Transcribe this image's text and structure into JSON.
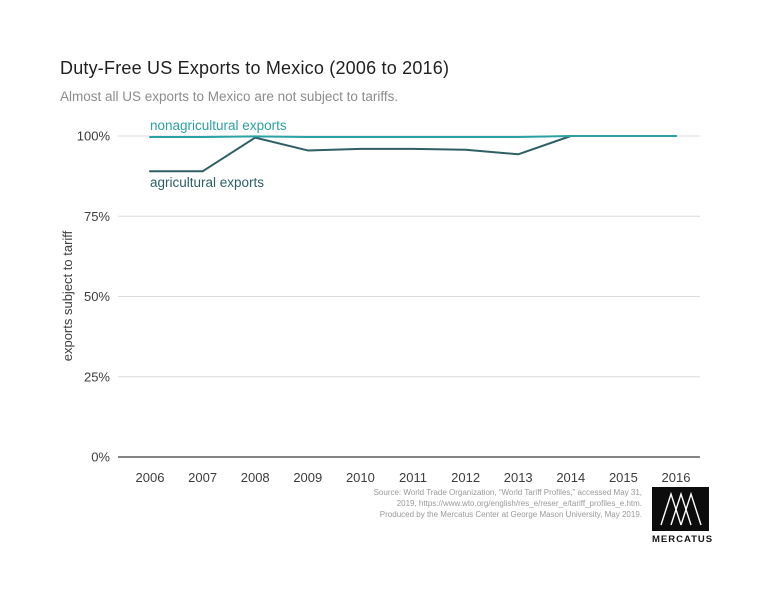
{
  "header": {
    "title": "Duty-Free US Exports to Mexico (2006 to 2016)",
    "subtitle": "Almost all US exports to Mexico are not subject to tariffs."
  },
  "chart_data": {
    "type": "line",
    "x": [
      2006,
      2007,
      2008,
      2009,
      2010,
      2011,
      2012,
      2013,
      2014,
      2015,
      2016
    ],
    "series": [
      {
        "name": "nonagricultural exports",
        "color": "#2ba1a5",
        "values": [
          99.7,
          99.7,
          99.9,
          99.7,
          99.7,
          99.7,
          99.7,
          99.7,
          100,
          100,
          100
        ]
      },
      {
        "name": "agricultural exports",
        "color": "#2e5f65",
        "values": [
          89,
          89,
          99.5,
          95.5,
          96,
          96,
          95.7,
          94.3,
          100,
          100,
          100
        ]
      }
    ],
    "title": "Duty-Free US Exports to Mexico (2006 to 2016)",
    "xlabel": "",
    "ylabel": "exports subject to tariff",
    "ylim": [
      0,
      100
    ],
    "yticks": [
      0,
      25,
      50,
      75,
      100
    ],
    "ytick_labels": [
      "0%",
      "25%",
      "50%",
      "75%",
      "100%"
    ],
    "grid": true,
    "legend": "inline-annotations",
    "colors": {
      "grid": "#dcdcdc",
      "axis": "#3c3c3c",
      "tick_text": "#3d3d3d"
    }
  },
  "source": {
    "lines": [
      "Source: World Trade Organization, “World Tariff Profiles,” accessed May 31,",
      "2019, https://www.wto.org/english/res_e/reser_e/tariff_profiles_e.htm.",
      "Produced by the Mercatus Center at George Mason University, May 2019."
    ]
  },
  "logo": {
    "wordmark": "MERCATUS"
  }
}
